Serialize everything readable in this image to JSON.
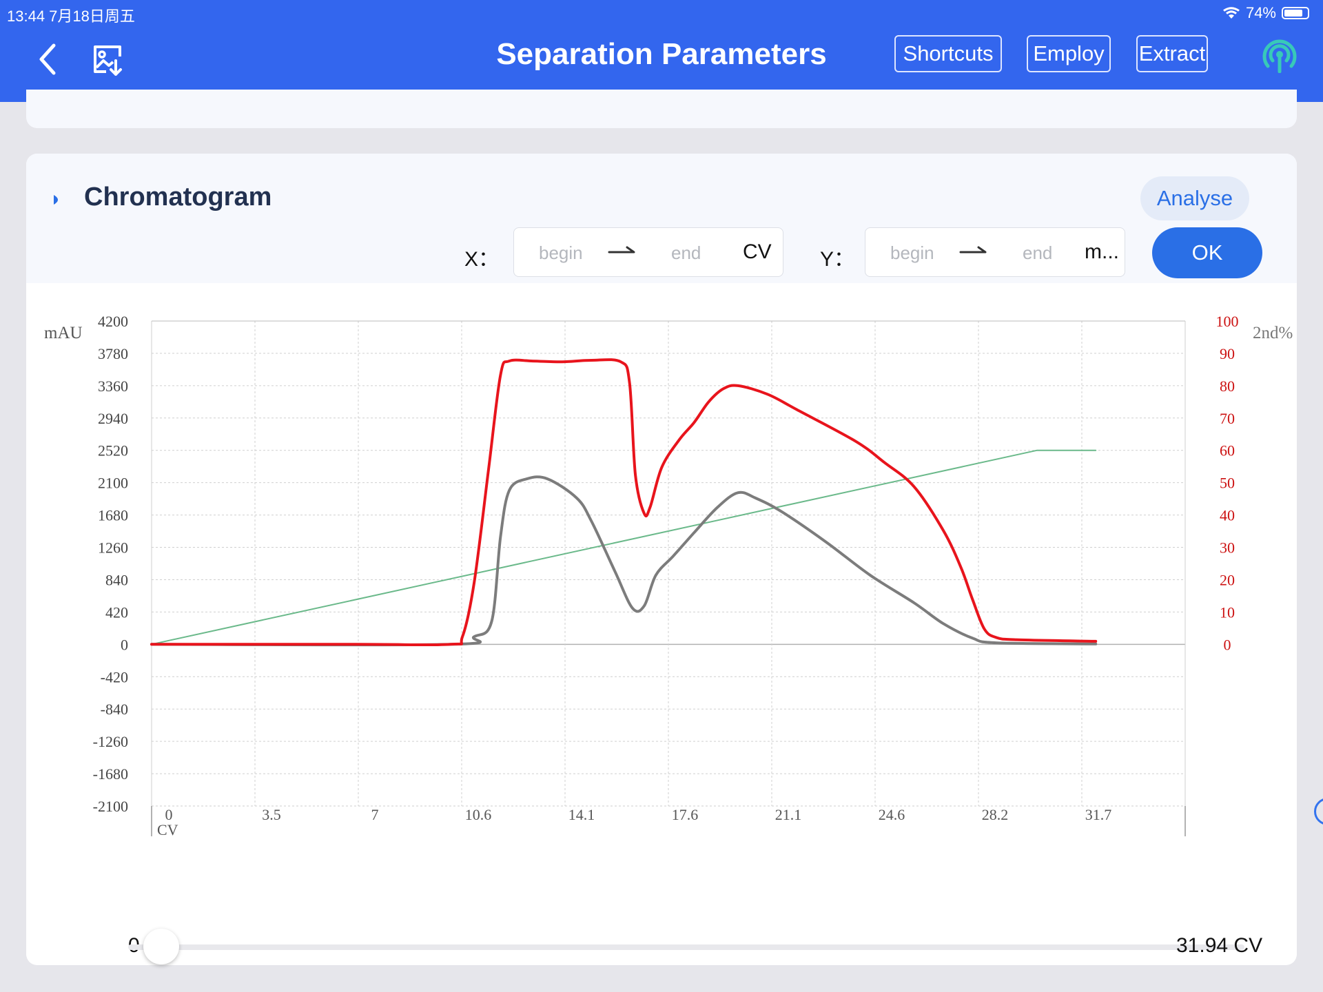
{
  "status_bar": {
    "time_date": "13:44   7月18日周五",
    "battery": "74%"
  },
  "header": {
    "title": "Separation Parameters",
    "buttons": {
      "shortcuts": "Shortcuts",
      "employ": "Employ",
      "extract": "Extract"
    }
  },
  "chromatogram": {
    "title": "Chromatogram",
    "analyse_label": "Analyse",
    "ok_label": "OK",
    "x_range": {
      "label": "X：",
      "begin_placeholder": "begin",
      "end_placeholder": "end",
      "unit": "CV"
    },
    "y_range": {
      "label": "Y：",
      "begin_placeholder": "begin",
      "end_placeholder": "end",
      "unit": "m..."
    }
  },
  "slider": {
    "min_label": "0",
    "max_label": "31.94 CV",
    "value": 0
  },
  "colors": {
    "header": "#3366ee",
    "accent": "#2a6fe6",
    "uv_trace": "#e8141c",
    "second_trace": "#7c7c7c",
    "gradient_line": "#6ab98a",
    "right_axis": "#cc1111"
  },
  "chart_data": {
    "type": "line",
    "x_unit_label": "CV",
    "y_left_label": "mAU",
    "y_right_label": "2nd%",
    "xlim": [
      0,
      35.25
    ],
    "ylim_left": [
      -2100,
      4200
    ],
    "ylim_right": [
      0,
      100
    ],
    "x_ticks": [
      "0",
      "3.5",
      "7",
      "10.6",
      "14.1",
      "17.6",
      "21.1",
      "24.6",
      "28.2",
      "31.7"
    ],
    "y_left_ticks": [
      "4200",
      "3780",
      "3360",
      "2940",
      "2520",
      "2100",
      "1680",
      "1260",
      "840",
      "420",
      "0",
      "-420",
      "-840",
      "-1260",
      "-1680",
      "-2100"
    ],
    "y_right_ticks": [
      "100",
      "90",
      "80",
      "70",
      "60",
      "50",
      "40",
      "30",
      "20",
      "10",
      "0"
    ],
    "grid": true,
    "series": [
      {
        "axis": "left",
        "color": "#e8141c",
        "width": 4,
        "points": [
          [
            0,
            0
          ],
          [
            7,
            0
          ],
          [
            10.2,
            0
          ],
          [
            10.6,
            100
          ],
          [
            11,
            800
          ],
          [
            11.5,
            2300
          ],
          [
            11.9,
            3500
          ],
          [
            12.2,
            3680
          ],
          [
            13,
            3680
          ],
          [
            14,
            3670
          ],
          [
            15,
            3690
          ],
          [
            16,
            3670
          ],
          [
            16.3,
            3400
          ],
          [
            16.5,
            2200
          ],
          [
            16.8,
            1700
          ],
          [
            17,
            1780
          ],
          [
            17.4,
            2300
          ],
          [
            18,
            2660
          ],
          [
            18.5,
            2880
          ],
          [
            19,
            3150
          ],
          [
            19.5,
            3320
          ],
          [
            20,
            3360
          ],
          [
            21,
            3250
          ],
          [
            22,
            3050
          ],
          [
            24,
            2640
          ],
          [
            25,
            2360
          ],
          [
            26,
            2050
          ],
          [
            27,
            1480
          ],
          [
            27.6,
            1000
          ],
          [
            28,
            580
          ],
          [
            28.4,
            200
          ],
          [
            28.8,
            90
          ],
          [
            29.5,
            60
          ],
          [
            32.2,
            40
          ]
        ]
      },
      {
        "axis": "left",
        "color": "#7c7c7c",
        "width": 4,
        "points": [
          [
            0,
            0
          ],
          [
            10.2,
            0
          ],
          [
            11,
            100
          ],
          [
            11.6,
            300
          ],
          [
            11.9,
            1400
          ],
          [
            12.2,
            2000
          ],
          [
            12.8,
            2150
          ],
          [
            13.5,
            2150
          ],
          [
            14.5,
            1900
          ],
          [
            15,
            1600
          ],
          [
            15.8,
            950
          ],
          [
            16.4,
            470
          ],
          [
            16.8,
            500
          ],
          [
            17.2,
            900
          ],
          [
            17.8,
            1150
          ],
          [
            18.5,
            1450
          ],
          [
            19.3,
            1780
          ],
          [
            20,
            1970
          ],
          [
            20.6,
            1900
          ],
          [
            21.5,
            1720
          ],
          [
            23,
            1330
          ],
          [
            24.5,
            900
          ],
          [
            26,
            540
          ],
          [
            27,
            270
          ],
          [
            28,
            80
          ],
          [
            28.8,
            20
          ],
          [
            32.2,
            5
          ]
        ]
      },
      {
        "axis": "right",
        "color": "#6ab98a",
        "width": 2,
        "points": [
          [
            0,
            0
          ],
          [
            30.2,
            60
          ],
          [
            32.2,
            60
          ]
        ]
      }
    ]
  }
}
